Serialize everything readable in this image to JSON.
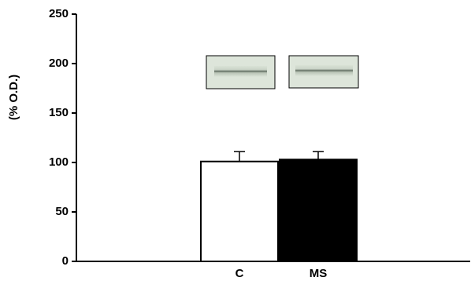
{
  "chart_data": {
    "type": "bar",
    "y_label": "(% O.D.)",
    "categories": [
      "C",
      "MS"
    ],
    "values": [
      101,
      103
    ],
    "errors": [
      10,
      8
    ],
    "colors": [
      "#ffffff",
      "#000000"
    ],
    "ylim": [
      0,
      250
    ],
    "yticks": [
      0,
      50,
      100,
      150,
      200,
      250
    ]
  }
}
